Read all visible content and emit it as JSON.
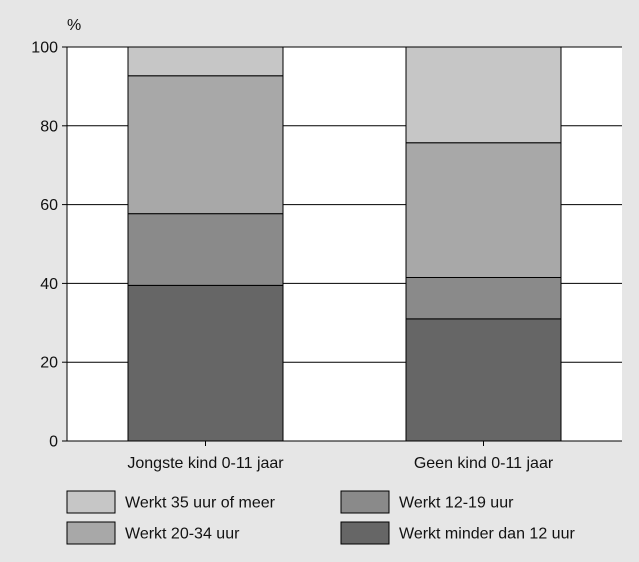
{
  "chart_data": {
    "type": "bar",
    "stacked": true,
    "unit_label": "%",
    "categories": [
      "Jongste kind 0-11 jaar",
      "Geen kind 0-11 jaar"
    ],
    "ylim": [
      0,
      100
    ],
    "yticks": [
      0,
      20,
      40,
      60,
      80,
      100
    ],
    "grid": true,
    "legend_position": "bottom",
    "series": [
      {
        "name": "Werkt minder dan 12 uur",
        "values": [
          39.5,
          31.0
        ],
        "color": "#666666"
      },
      {
        "name": "Werkt 12-19 uur",
        "values": [
          18.2,
          10.5
        ],
        "color": "#8a8a8a"
      },
      {
        "name": "Werkt 20-34 uur",
        "values": [
          35.0,
          34.2
        ],
        "color": "#a8a8a8"
      },
      {
        "name": "Werkt 35 uur of meer",
        "values": [
          7.3,
          24.3
        ],
        "color": "#c6c6c6"
      }
    ],
    "legend_order": [
      "Werkt 35 uur of meer",
      "Werkt 12-19 uur",
      "Werkt 20-34 uur",
      "Werkt minder dan 12 uur"
    ],
    "colors": {
      "background": "#e6e6e6",
      "plot_background": "#ffffff",
      "gridline": "#000000"
    }
  }
}
